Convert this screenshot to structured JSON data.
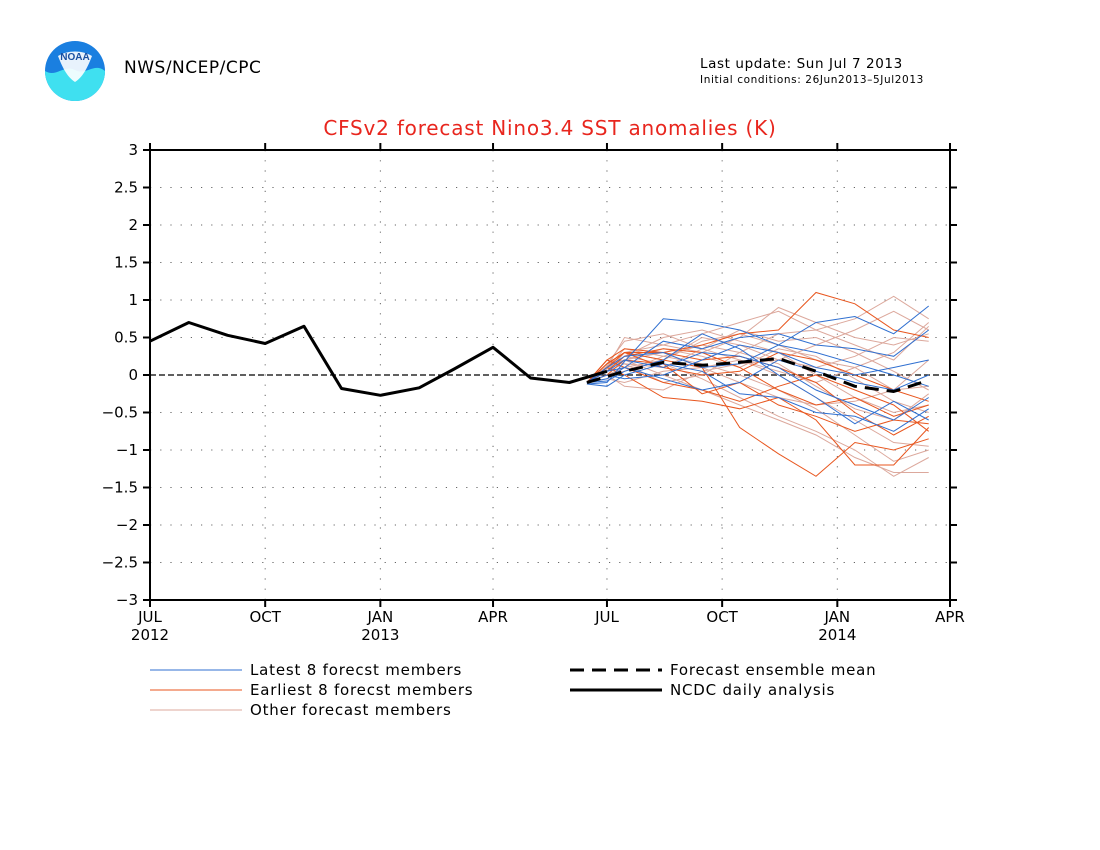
{
  "header": {
    "agency": "NWS/NCEP/CPC",
    "last_update": "Last update: Sun Jul 7 2013",
    "initial_conditions": "Initial conditions: 26Jun2013–5Jul2013",
    "logo_text": "NOAA"
  },
  "colors": {
    "title": "#e8261e",
    "latest": "#2f6fd0",
    "earliest": "#e8561e",
    "other": "#dca89c",
    "mean": "#000000",
    "analysis": "#000000"
  },
  "chart_data": {
    "type": "line",
    "title": "CFSv2 forecast Nino3.4 SST anomalies (K)",
    "xlabel": "",
    "ylabel": "",
    "ylim": [
      -3,
      3
    ],
    "xlim": [
      "2012-07-01",
      "2014-04-01"
    ],
    "grid": true,
    "zero_line": true,
    "legend_position": "bottom",
    "y_ticks": [
      "3",
      "2.5",
      "2",
      "1.5",
      "1",
      "0.5",
      "0",
      "−0.5",
      "−1",
      "−1.5",
      "−2",
      "−2.5",
      "−3"
    ],
    "x_ticks": [
      {
        "date": "2012-07-01",
        "label": "JUL",
        "year": "2012"
      },
      {
        "date": "2012-10-01",
        "label": "OCT",
        "year": ""
      },
      {
        "date": "2013-01-01",
        "label": "JAN",
        "year": "2013"
      },
      {
        "date": "2013-04-01",
        "label": "APR",
        "year": ""
      },
      {
        "date": "2013-07-01",
        "label": "JUL",
        "year": ""
      },
      {
        "date": "2013-10-01",
        "label": "OCT",
        "year": ""
      },
      {
        "date": "2014-01-01",
        "label": "JAN",
        "year": "2014"
      },
      {
        "date": "2014-04-01",
        "label": "APR",
        "year": ""
      }
    ],
    "legend": [
      {
        "key": "latest",
        "label": "Latest 8 forecst members",
        "style": "thin"
      },
      {
        "key": "mean",
        "label": "Forecast ensemble mean",
        "style": "dashed"
      },
      {
        "key": "earliest",
        "label": "Earliest 8 forecst members",
        "style": "thin"
      },
      {
        "key": "analysis",
        "label": "NCDC daily analysis",
        "style": "thick"
      },
      {
        "key": "other",
        "label": "Other forecast members",
        "style": "thin"
      }
    ],
    "forecast_dates": [
      "2013-06-15",
      "2013-07-01",
      "2013-07-15",
      "2013-08-15",
      "2013-09-15",
      "2013-10-15",
      "2013-11-15",
      "2013-12-15",
      "2014-01-15",
      "2014-02-15",
      "2014-03-15"
    ],
    "series": [
      {
        "name": "NCDC daily analysis",
        "key": "analysis",
        "x": [
          "2012-07-01",
          "2012-08-01",
          "2012-09-01",
          "2012-10-01",
          "2012-11-01",
          "2012-12-01",
          "2013-01-01",
          "2013-02-01",
          "2013-03-01",
          "2013-04-01",
          "2013-05-01",
          "2013-06-01",
          "2013-07-01"
        ],
        "y": [
          0.45,
          0.7,
          0.53,
          0.42,
          0.65,
          -0.18,
          -0.27,
          -0.17,
          0.08,
          0.37,
          -0.04,
          -0.1,
          0.05
        ]
      },
      {
        "name": "Forecast ensemble mean",
        "key": "mean",
        "x": [
          "2013-06-15",
          "2013-07-15",
          "2013-08-15",
          "2013-09-15",
          "2013-10-15",
          "2013-11-15",
          "2013-12-15",
          "2014-01-15",
          "2014-02-15",
          "2014-03-15"
        ],
        "y": [
          -0.1,
          0.05,
          0.17,
          0.13,
          0.17,
          0.22,
          0.05,
          -0.15,
          -0.22,
          -0.07
        ]
      }
    ],
    "members": {
      "latest": [
        [
          -0.12,
          -0.1,
          0.18,
          0.75,
          0.7,
          0.6,
          0.4,
          0.7,
          0.78,
          0.55,
          0.92
        ],
        [
          -0.1,
          -0.05,
          0.1,
          0.45,
          0.35,
          0.5,
          0.55,
          0.4,
          0.35,
          0.25,
          0.6
        ],
        [
          -0.1,
          0.05,
          0.2,
          0.1,
          0.3,
          0.25,
          0.1,
          -0.2,
          -0.4,
          -0.6,
          -0.3
        ],
        [
          -0.1,
          0.0,
          -0.05,
          0.0,
          0.2,
          0.4,
          0.3,
          0.1,
          0.0,
          0.1,
          0.2
        ],
        [
          -0.12,
          -0.15,
          0.0,
          0.15,
          0.05,
          -0.25,
          -0.3,
          -0.5,
          -0.55,
          -0.75,
          -0.45
        ],
        [
          -0.1,
          0.1,
          0.25,
          0.3,
          0.1,
          0.15,
          0.4,
          0.3,
          0.15,
          0.0,
          -0.15
        ],
        [
          -0.1,
          -0.08,
          0.05,
          0.2,
          0.55,
          0.35,
          0.0,
          -0.3,
          -0.65,
          -0.35,
          -0.6
        ],
        [
          -0.1,
          0.05,
          0.1,
          -0.05,
          -0.2,
          -0.1,
          0.2,
          0.05,
          -0.1,
          -0.2,
          0.0
        ]
      ],
      "earliest": [
        [
          -0.1,
          0.2,
          0.35,
          0.3,
          0.4,
          0.55,
          0.6,
          1.1,
          0.95,
          0.6,
          0.5
        ],
        [
          -0.1,
          0.15,
          0.3,
          0.2,
          0.1,
          -0.7,
          -1.05,
          -1.35,
          -0.9,
          -1.0,
          -0.85
        ],
        [
          -0.1,
          0.1,
          0.0,
          -0.3,
          -0.35,
          -0.45,
          -0.3,
          -0.6,
          -1.2,
          -1.2,
          -0.7
        ],
        [
          -0.1,
          0.05,
          0.25,
          0.35,
          0.3,
          0.1,
          -0.2,
          -0.4,
          -0.3,
          -0.55,
          -0.4
        ],
        [
          -0.1,
          0.2,
          0.1,
          -0.1,
          -0.2,
          -0.35,
          -0.15,
          0.0,
          -0.2,
          -0.4,
          -0.75
        ],
        [
          -0.1,
          0.15,
          0.3,
          0.1,
          0.0,
          0.05,
          0.3,
          0.2,
          0.0,
          -0.2,
          -0.35
        ],
        [
          -0.1,
          0.1,
          0.3,
          0.3,
          0.2,
          0.25,
          0.1,
          -0.1,
          -0.5,
          -0.8,
          -0.55
        ],
        [
          -0.1,
          0.0,
          0.2,
          0.15,
          -0.25,
          -0.1,
          -0.4,
          -0.55,
          -0.75,
          -0.6,
          -0.65
        ]
      ],
      "other": [
        [
          -0.1,
          0.1,
          0.5,
          0.4,
          0.55,
          0.7,
          0.85,
          0.6,
          0.75,
          1.05,
          0.75
        ],
        [
          -0.1,
          0.05,
          0.3,
          0.4,
          0.3,
          0.5,
          0.9,
          0.7,
          0.5,
          0.4,
          0.55
        ],
        [
          -0.1,
          0.15,
          0.2,
          0.0,
          -0.2,
          -0.4,
          -0.6,
          -0.8,
          -1.1,
          -1.3,
          -1.3
        ],
        [
          -0.1,
          0.0,
          0.1,
          0.2,
          0.45,
          0.55,
          0.4,
          0.2,
          0.1,
          -0.2,
          0.2
        ],
        [
          -0.1,
          -0.05,
          -0.1,
          0.05,
          0.1,
          0.2,
          0.0,
          -0.3,
          -0.6,
          -0.9,
          -0.95
        ],
        [
          -0.1,
          0.05,
          0.25,
          0.5,
          0.6,
          0.45,
          0.3,
          0.0,
          -0.3,
          -0.5,
          -0.4
        ],
        [
          -0.1,
          0.2,
          0.15,
          -0.1,
          0.0,
          0.3,
          0.55,
          0.6,
          0.4,
          0.2,
          0.65
        ],
        [
          -0.1,
          0.1,
          0.35,
          0.25,
          0.15,
          0.0,
          -0.2,
          -0.45,
          -0.8,
          -1.15,
          -1.0
        ],
        [
          -0.1,
          0.0,
          -0.15,
          -0.2,
          0.05,
          0.15,
          0.2,
          0.4,
          0.6,
          0.85,
          0.6
        ],
        [
          -0.1,
          0.12,
          0.2,
          0.3,
          0.1,
          -0.1,
          -0.3,
          -0.4,
          -0.35,
          -0.2,
          -0.15
        ],
        [
          -0.1,
          0.05,
          0.15,
          0.1,
          0.35,
          0.6,
          0.45,
          0.5,
          0.3,
          0.05,
          -0.2
        ],
        [
          -0.1,
          0.08,
          0.25,
          0.15,
          -0.05,
          -0.3,
          -0.55,
          -0.75,
          -1.0,
          -1.35,
          -1.1
        ],
        [
          -0.1,
          0.15,
          0.45,
          0.55,
          0.35,
          0.2,
          0.05,
          -0.1,
          0.1,
          0.3,
          0.7
        ],
        [
          -0.1,
          0.0,
          0.05,
          0.25,
          0.4,
          0.3,
          0.15,
          -0.15,
          -0.45,
          -0.6,
          -0.25
        ],
        [
          -0.1,
          0.1,
          0.2,
          0.35,
          0.25,
          0.1,
          0.35,
          0.25,
          -0.05,
          -0.35,
          -0.5
        ],
        [
          -0.1,
          0.05,
          0.3,
          0.2,
          0.5,
          0.4,
          0.2,
          0.1,
          0.25,
          0.5,
          0.45
        ]
      ]
    }
  }
}
